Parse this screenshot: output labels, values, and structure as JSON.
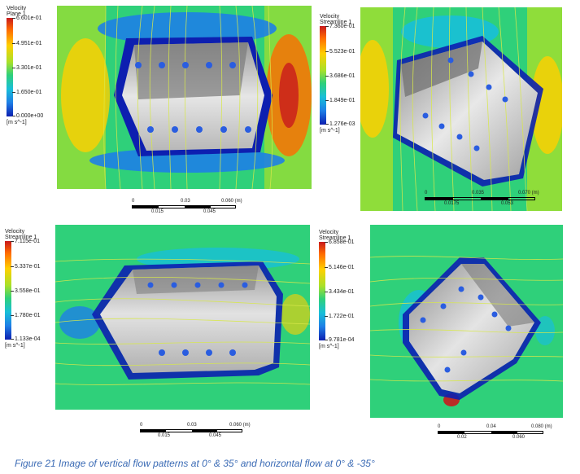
{
  "figures": [
    {
      "legend": {
        "title1": "Velocity",
        "title2": "Plane 1",
        "ticks": [
          "6.601e-01",
          "4.951e-01",
          "3.301e-01",
          "1.650e-01",
          "0.000e+00"
        ],
        "unit": "[m s^-1]"
      },
      "scale": {
        "top": [
          "0",
          "0.03",
          "0.060 (m)"
        ],
        "bottom": [
          "0.015",
          "0.045"
        ]
      }
    },
    {
      "legend": {
        "title1": "Velocity",
        "title2": "Streamline 1",
        "ticks": [
          "7.360e-01",
          "5.523e-01",
          "3.686e-01",
          "1.849e-01",
          "1.276e-03"
        ],
        "unit": "[m s^-1]"
      },
      "scale": {
        "top": [
          "0",
          "0.035",
          "0.070 (m)"
        ],
        "bottom": [
          "0.0175",
          "0.053"
        ]
      }
    },
    {
      "legend": {
        "title1": "Velocity",
        "title2": "Streamline 1",
        "ticks": [
          "7.115e-01",
          "5.337e-01",
          "3.558e-01",
          "1.780e-01",
          "1.133e-04"
        ],
        "unit": "[m s^-1]"
      },
      "scale": {
        "top": [
          "0",
          "0.03",
          "0.060 (m)"
        ],
        "bottom": [
          "0.015",
          "0.045"
        ]
      }
    },
    {
      "legend": {
        "title1": "Velocity",
        "title2": "Streamline 1",
        "ticks": [
          "6.858e-01",
          "5.146e-01",
          "3.434e-01",
          "1.722e-01",
          "9.781e-04"
        ],
        "unit": "[m s^-1]"
      },
      "scale": {
        "top": [
          "0",
          "0.04",
          "0.080 (m)"
        ],
        "bottom": [
          "0.02",
          "0.060"
        ]
      }
    }
  ],
  "caption": "Figure 21 Image of vertical flow patterns at 0° & 35° and horizontal flow at 0° & -35°",
  "colors": {
    "caption": "#3b6bb5",
    "flow_bg": "#2fd07a",
    "low": "#0d1fb0",
    "high": "#c8191d"
  }
}
